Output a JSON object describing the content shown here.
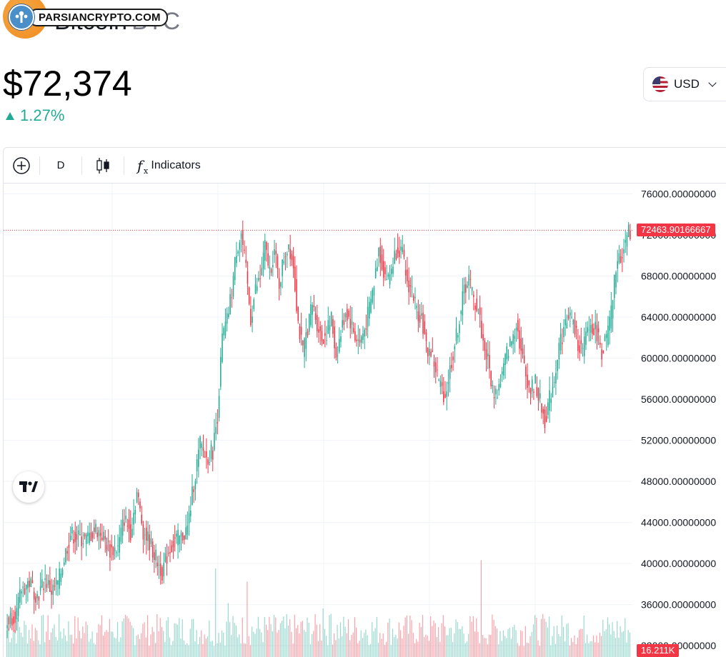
{
  "header": {
    "coin_name": "Bitcoin",
    "ticker": "BTC",
    "watermark_text": "PARSIANCRYPTO.COM"
  },
  "price": "$72,374",
  "change": "1.27%",
  "currency": {
    "label": "USD",
    "flag": "us-flag-icon"
  },
  "toolbar": {
    "interval": "D",
    "indicators_label": "Indicators"
  },
  "colors": {
    "up": "#22ab94",
    "down": "#f23645",
    "grid": "#f0f3fa",
    "text": "#131722"
  },
  "chart_data": {
    "type": "candlestick",
    "y_axis_labels": [
      "76000.00000000",
      "72000.00000000",
      "68000.00000000",
      "64000.00000000",
      "60000.00000000",
      "56000.00000000",
      "52000.00000000",
      "48000.00000000",
      "44000.00000000",
      "40000.00000000",
      "36000.00000000",
      "32000.00000000"
    ],
    "ylim": [
      31800,
      78400
    ],
    "last_price_label": "72463.90166667",
    "last_price": 72463.9,
    "volume_label": "16.211K",
    "close_path": [
      [
        0,
        34500
      ],
      [
        6,
        35200
      ],
      [
        9,
        37500
      ],
      [
        14,
        38200
      ],
      [
        19,
        36800
      ],
      [
        24,
        38400
      ],
      [
        28,
        37300
      ],
      [
        32,
        38000
      ],
      [
        36,
        40500
      ],
      [
        40,
        42900
      ],
      [
        45,
        42500
      ],
      [
        50,
        42300
      ],
      [
        56,
        43400
      ],
      [
        60,
        42800
      ],
      [
        65,
        41300
      ],
      [
        70,
        41500
      ],
      [
        74,
        44400
      ],
      [
        78,
        43100
      ],
      [
        82,
        46900
      ],
      [
        86,
        43200
      ],
      [
        90,
        42100
      ],
      [
        94,
        40500
      ],
      [
        98,
        39200
      ],
      [
        102,
        41200
      ],
      [
        106,
        42300
      ],
      [
        110,
        42500
      ],
      [
        114,
        43400
      ],
      [
        118,
        47800
      ],
      [
        122,
        51600
      ],
      [
        126,
        50200
      ],
      [
        130,
        51000
      ],
      [
        133,
        54500
      ],
      [
        136,
        61900
      ],
      [
        139,
        63600
      ],
      [
        142,
        66500
      ],
      [
        145,
        70600
      ],
      [
        148,
        72100
      ],
      [
        151,
        68400
      ],
      [
        154,
        63800
      ],
      [
        157,
        66700
      ],
      [
        160,
        67800
      ],
      [
        163,
        70800
      ],
      [
        166,
        68500
      ],
      [
        169,
        70400
      ],
      [
        172,
        67200
      ],
      [
        175,
        69800
      ],
      [
        178,
        71200
      ],
      [
        181,
        69100
      ],
      [
        184,
        63500
      ],
      [
        187,
        60500
      ],
      [
        190,
        63100
      ],
      [
        193,
        65200
      ],
      [
        196,
        63400
      ],
      [
        199,
        61900
      ],
      [
        202,
        62500
      ],
      [
        205,
        63800
      ],
      [
        208,
        60200
      ],
      [
        211,
        62400
      ],
      [
        214,
        64600
      ],
      [
        217,
        63600
      ],
      [
        220,
        62100
      ],
      [
        223,
        61500
      ],
      [
        226,
        62800
      ],
      [
        229,
        64800
      ],
      [
        232,
        67200
      ],
      [
        235,
        70700
      ],
      [
        238,
        68500
      ],
      [
        241,
        67600
      ],
      [
        244,
        69400
      ],
      [
        247,
        71000
      ],
      [
        250,
        70000
      ],
      [
        253,
        67300
      ],
      [
        256,
        66700
      ],
      [
        259,
        64600
      ],
      [
        262,
        64100
      ],
      [
        265,
        60900
      ],
      [
        268,
        60600
      ],
      [
        271,
        58900
      ],
      [
        274,
        57200
      ],
      [
        277,
        56300
      ],
      [
        280,
        58900
      ],
      [
        283,
        61300
      ],
      [
        286,
        63800
      ],
      [
        289,
        66700
      ],
      [
        292,
        67800
      ],
      [
        295,
        65600
      ],
      [
        298,
        64800
      ],
      [
        301,
        61500
      ],
      [
        304,
        59800
      ],
      [
        307,
        56800
      ],
      [
        310,
        56700
      ],
      [
        313,
        58400
      ],
      [
        316,
        60500
      ],
      [
        319,
        61700
      ],
      [
        322,
        63600
      ],
      [
        325,
        60600
      ],
      [
        328,
        58400
      ],
      [
        331,
        56900
      ],
      [
        334,
        57600
      ],
      [
        337,
        55700
      ],
      [
        340,
        53900
      ],
      [
        343,
        56000
      ],
      [
        346,
        58100
      ],
      [
        349,
        61300
      ],
      [
        352,
        62700
      ],
      [
        355,
        64400
      ],
      [
        358,
        63300
      ],
      [
        361,
        61500
      ],
      [
        364,
        60500
      ],
      [
        367,
        62900
      ],
      [
        370,
        63100
      ],
      [
        373,
        62500
      ],
      [
        376,
        60700
      ],
      [
        379,
        61800
      ],
      [
        382,
        64300
      ],
      [
        385,
        68900
      ],
      [
        388,
        69900
      ],
      [
        391,
        71400
      ],
      [
        394,
        72463.9
      ]
    ],
    "volume_max_K": 40,
    "volume_spikes": [
      [
        300,
        38
      ],
      [
        132,
        35
      ],
      [
        140,
        22
      ],
      [
        152,
        30
      ],
      [
        200,
        20
      ],
      [
        205,
        18
      ]
    ]
  }
}
